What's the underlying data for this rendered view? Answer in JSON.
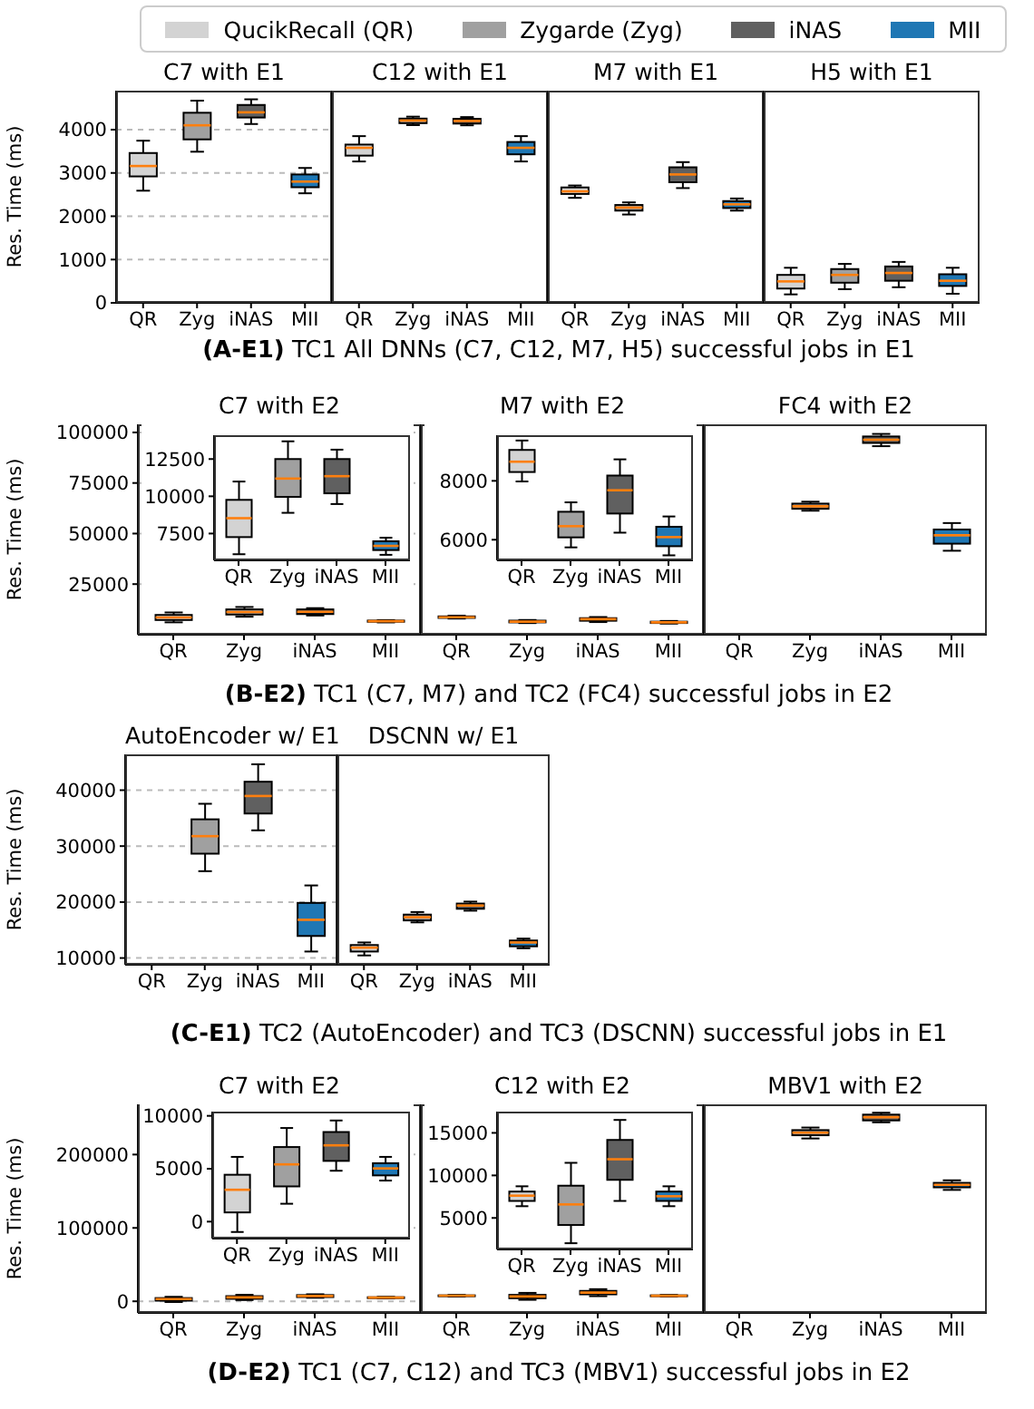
{
  "chart_data": [
    {
      "type": "box",
      "title": "C7 with E1",
      "ylabel": "Res. Time (ms)",
      "categories": [
        "QR",
        "Zyg",
        "iNAS",
        "MII"
      ],
      "ylim": [
        0,
        4900
      ],
      "yticks": [
        0,
        1000,
        2000,
        3000,
        4000
      ],
      "grid": "y",
      "legend": "top",
      "series": [
        {
          "name": "QucikRecall (QR)",
          "color": "#d3d3d3",
          "boxes": [
            {
              "low": 2590,
              "q1": 2920,
              "median": 3160,
              "q3": 3460,
              "high": 3745
            },
            null,
            null,
            null
          ]
        },
        {
          "name": "Zygarde (Zyg)",
          "color": "#a0a0a0",
          "boxes": [
            null,
            {
              "low": 3490,
              "q1": 3775,
              "median": 4100,
              "q3": 4390,
              "high": 4670
            },
            null,
            null
          ]
        },
        {
          "name": "iNAS",
          "color": "#606060",
          "boxes": [
            null,
            null,
            {
              "low": 4130,
              "q1": 4280,
              "median": 4400,
              "q3": 4570,
              "high": 4700
            },
            null
          ]
        },
        {
          "name": "MII",
          "color": "#1f77b4",
          "boxes": [
            null,
            null,
            null,
            {
              "low": 2530,
              "q1": 2670,
              "median": 2800,
              "q3": 2965,
              "high": 3115
            }
          ]
        }
      ]
    },
    {
      "type": "box",
      "title": "C12 with E1",
      "categories": [
        "QR",
        "Zyg",
        "iNAS",
        "MII"
      ],
      "ylim": [
        0,
        4900
      ],
      "yticks": [
        0,
        1000,
        2000,
        3000,
        4000
      ],
      "grid": "y",
      "tick_labels": "x",
      "series": [
        {
          "color": "#d3d3d3",
          "boxes": [
            {
              "low": 3265,
              "q1": 3400,
              "median": 3580,
              "q3": 3655,
              "high": 3850
            },
            null,
            null,
            null
          ]
        },
        {
          "color": "#a0a0a0",
          "boxes": [
            null,
            {
              "low": 4105,
              "q1": 4150,
              "median": 4210,
              "q3": 4255,
              "high": 4300
            },
            null,
            null
          ]
        },
        {
          "color": "#606060",
          "boxes": [
            null,
            null,
            {
              "low": 4100,
              "q1": 4140,
              "median": 4200,
              "q3": 4250,
              "high": 4290
            },
            null
          ]
        },
        {
          "color": "#1f77b4",
          "boxes": [
            null,
            null,
            null,
            {
              "low": 3265,
              "q1": 3430,
              "median": 3580,
              "q3": 3715,
              "high": 3850
            }
          ]
        }
      ]
    },
    {
      "type": "box",
      "title": "M7 with E1",
      "categories": [
        "QR",
        "Zyg",
        "iNAS",
        "MII"
      ],
      "ylim": [
        0,
        4900
      ],
      "yticks": [
        0,
        1000,
        2000,
        3000,
        4000
      ],
      "grid": "y",
      "tick_labels": "x",
      "series": [
        {
          "color": "#d3d3d3",
          "boxes": [
            {
              "low": 2425,
              "q1": 2515,
              "median": 2575,
              "q3": 2665,
              "high": 2710
            },
            null,
            null,
            null
          ]
        },
        {
          "color": "#a0a0a0",
          "boxes": [
            null,
            {
              "low": 2040,
              "q1": 2130,
              "median": 2200,
              "q3": 2260,
              "high": 2320
            },
            null,
            null
          ]
        },
        {
          "color": "#606060",
          "boxes": [
            null,
            null,
            {
              "low": 2650,
              "q1": 2785,
              "median": 2965,
              "q3": 3130,
              "high": 3250
            },
            null
          ]
        },
        {
          "color": "#1f77b4",
          "boxes": [
            null,
            null,
            null,
            {
              "low": 2130,
              "q1": 2190,
              "median": 2275,
              "q3": 2350,
              "high": 2410
            }
          ]
        }
      ]
    },
    {
      "type": "box",
      "title": "H5 with E1",
      "categories": [
        "QR",
        "Zyg",
        "iNAS",
        "MII"
      ],
      "ylim": [
        0,
        4900
      ],
      "yticks": [
        0,
        1000,
        2000,
        3000,
        4000
      ],
      "grid": "y",
      "tick_labels": "x",
      "annotations": [
        "(A-E1) TC1 All DNNs (C7, C12, M7, H5) successful jobs in E1"
      ],
      "series": [
        {
          "color": "#d3d3d3",
          "boxes": [
            {
              "low": 195,
              "q1": 330,
              "median": 495,
              "q3": 645,
              "high": 810
            },
            null,
            null,
            null
          ]
        },
        {
          "color": "#a0a0a0",
          "boxes": [
            null,
            {
              "low": 315,
              "q1": 465,
              "median": 645,
              "q3": 780,
              "high": 900
            },
            null,
            null
          ]
        },
        {
          "color": "#606060",
          "boxes": [
            null,
            null,
            {
              "low": 360,
              "q1": 510,
              "median": 690,
              "q3": 840,
              "high": 945
            },
            null
          ]
        },
        {
          "color": "#1f77b4",
          "boxes": [
            null,
            null,
            null,
            {
              "low": 210,
              "q1": 390,
              "median": 510,
              "q3": 660,
              "high": 810
            }
          ]
        }
      ]
    },
    {
      "type": "box",
      "title": "C7 with E2",
      "ylabel": "Res. Time (ms)",
      "categories": [
        "QR",
        "Zyg",
        "iNAS",
        "MII"
      ],
      "ylim": [
        0,
        104000
      ],
      "yticks": [
        25000,
        50000,
        75000,
        100000
      ],
      "grid": "y",
      "series": [
        {
          "color": "#d3d3d3",
          "boxes": [
            {
              "low": 6110,
              "q1": 7260,
              "median": 8530,
              "q3": 9760,
              "high": 10990
            },
            null,
            null,
            null
          ]
        },
        {
          "color": "#a0a0a0",
          "boxes": [
            null,
            {
              "low": 8890,
              "q1": 9960,
              "median": 11190,
              "q3": 12500,
              "high": 13690
            },
            null,
            null
          ]
        },
        {
          "color": "#606060",
          "boxes": [
            null,
            null,
            {
              "low": 9480,
              "q1": 10200,
              "median": 11350,
              "q3": 12500,
              "high": 13130
            },
            null
          ]
        },
        {
          "color": "#1f77b4",
          "boxes": [
            null,
            null,
            null,
            {
              "low": 6070,
              "q1": 6390,
              "median": 6670,
              "q3": 6980,
              "high": 7220
            }
          ]
        }
      ]
    },
    {
      "type": "box",
      "categories": [
        "QR",
        "Zyg",
        "iNAS",
        "MII"
      ],
      "ylim": [
        5700,
        14100
      ],
      "yticks": [
        7500,
        10000,
        12500
      ],
      "series": [
        {
          "color": "#d3d3d3",
          "boxes": [
            {
              "low": 6110,
              "q1": 7260,
              "median": 8530,
              "q3": 9760,
              "high": 10990
            },
            null,
            null,
            null
          ]
        },
        {
          "color": "#a0a0a0",
          "boxes": [
            null,
            {
              "low": 8890,
              "q1": 9960,
              "median": 11190,
              "q3": 12500,
              "high": 13690
            },
            null,
            null
          ]
        },
        {
          "color": "#606060",
          "boxes": [
            null,
            null,
            {
              "low": 9480,
              "q1": 10200,
              "median": 11350,
              "q3": 12500,
              "high": 13130
            },
            null
          ]
        },
        {
          "color": "#1f77b4",
          "boxes": [
            null,
            null,
            null,
            {
              "low": 6070,
              "q1": 6390,
              "median": 6670,
              "q3": 6980,
              "high": 7220
            }
          ]
        }
      ]
    },
    {
      "type": "box",
      "title": "M7 with E2",
      "categories": [
        "QR",
        "Zyg",
        "iNAS",
        "MII"
      ],
      "ylim": [
        0,
        104000
      ],
      "yticks": [
        25000,
        50000,
        75000,
        100000
      ],
      "grid": "y",
      "tick_labels": "x",
      "series": [
        {
          "color": "#d3d3d3",
          "boxes": [
            {
              "low": 7980,
              "q1": 8300,
              "median": 8650,
              "q3": 9050,
              "high": 9370
            },
            null,
            null,
            null
          ]
        },
        {
          "color": "#a0a0a0",
          "boxes": [
            null,
            {
              "low": 5740,
              "q1": 6080,
              "median": 6460,
              "q3": 6950,
              "high": 7270
            },
            null,
            null
          ]
        },
        {
          "color": "#606060",
          "boxes": [
            null,
            null,
            {
              "low": 6240,
              "q1": 6890,
              "median": 7680,
              "q3": 8180,
              "high": 8730
            },
            null
          ]
        },
        {
          "color": "#1f77b4",
          "boxes": [
            null,
            null,
            null,
            {
              "low": 5470,
              "q1": 5780,
              "median": 6090,
              "q3": 6440,
              "high": 6790
            }
          ]
        }
      ]
    },
    {
      "type": "box",
      "categories": [
        "QR",
        "Zyg",
        "iNAS",
        "MII"
      ],
      "ylim": [
        5300,
        9550
      ],
      "yticks": [
        6000,
        8000
      ],
      "series": [
        {
          "color": "#d3d3d3",
          "boxes": [
            {
              "low": 7980,
              "q1": 8300,
              "median": 8650,
              "q3": 9050,
              "high": 9370
            },
            null,
            null,
            null
          ]
        },
        {
          "color": "#a0a0a0",
          "boxes": [
            null,
            {
              "low": 5740,
              "q1": 6080,
              "median": 6460,
              "q3": 6950,
              "high": 7270
            },
            null,
            null
          ]
        },
        {
          "color": "#606060",
          "boxes": [
            null,
            null,
            {
              "low": 6240,
              "q1": 6890,
              "median": 7680,
              "q3": 8180,
              "high": 8730
            },
            null
          ]
        },
        {
          "color": "#1f77b4",
          "boxes": [
            null,
            null,
            null,
            {
              "low": 5470,
              "q1": 5780,
              "median": 6090,
              "q3": 6440,
              "high": 6790
            }
          ]
        }
      ]
    },
    {
      "type": "box",
      "title": "FC4 with E2",
      "categories": [
        "QR",
        "Zyg",
        "iNAS",
        "MII"
      ],
      "ylim": [
        0,
        104000
      ],
      "yticks": [
        25000,
        50000,
        75000,
        100000
      ],
      "grid": "y",
      "tick_labels": "x",
      "annotations": [
        "(B-E2) TC1 (C7, M7) and TC2 (FC4) successful jobs in E2"
      ],
      "series": [
        {
          "color": "#a0a0a0",
          "boxes": [
            null,
            {
              "low": 61300,
              "q1": 62250,
              "median": 63500,
              "q3": 64800,
              "high": 65750
            },
            null,
            null
          ]
        },
        {
          "color": "#606060",
          "boxes": [
            null,
            null,
            {
              "low": 93200,
              "q1": 94800,
              "median": 96400,
              "q3": 98000,
              "high": 99260
            },
            null
          ]
        },
        {
          "color": "#1f77b4",
          "boxes": [
            null,
            null,
            null,
            {
              "low": 41500,
              "q1": 45000,
              "median": 49150,
              "q3": 52000,
              "high": 55200
            }
          ]
        }
      ]
    },
    {
      "type": "box",
      "title": "AutoEncoder w/ E1",
      "ylabel": "Res. Time (ms)",
      "categories": [
        "QR",
        "Zyg",
        "iNAS",
        "MII"
      ],
      "ylim": [
        8800,
        46400
      ],
      "yticks": [
        10000,
        20000,
        30000,
        40000
      ],
      "grid": "y",
      "series": [
        {
          "color": "#a0a0a0",
          "boxes": [
            null,
            {
              "low": 25520,
              "q1": 28650,
              "median": 31780,
              "q3": 34790,
              "high": 37570
            },
            null,
            null
          ]
        },
        {
          "color": "#606060",
          "boxes": [
            null,
            null,
            {
              "low": 32820,
              "q1": 35830,
              "median": 38960,
              "q3": 41510,
              "high": 44630
            },
            null
          ]
        },
        {
          "color": "#1f77b4",
          "boxes": [
            null,
            null,
            null,
            {
              "low": 11160,
              "q1": 13940,
              "median": 16830,
              "q3": 19850,
              "high": 22970
            }
          ]
        }
      ]
    },
    {
      "type": "box",
      "title": "DSCNN w/ E1",
      "categories": [
        "QR",
        "Zyg",
        "iNAS",
        "MII"
      ],
      "ylim": [
        8800,
        46400
      ],
      "yticks": [
        10000,
        20000,
        30000,
        40000
      ],
      "grid": "y",
      "tick_labels": "x",
      "annotations": [
        "(C-E1) TC2 (AutoEncoder) and TC3 (DSCNN) successful jobs in E1"
      ],
      "series": [
        {
          "color": "#d3d3d3",
          "boxes": [
            {
              "low": 10460,
              "q1": 11160,
              "median": 11850,
              "q3": 12320,
              "high": 12780
            },
            null,
            null,
            null
          ]
        },
        {
          "color": "#a0a0a0",
          "boxes": [
            null,
            {
              "low": 16370,
              "q1": 16720,
              "median": 17300,
              "q3": 17760,
              "high": 18220
            },
            null,
            null
          ]
        },
        {
          "color": "#606060",
          "boxes": [
            null,
            null,
            {
              "low": 18460,
              "q1": 18800,
              "median": 19380,
              "q3": 19730,
              "high": 20080
            },
            null
          ]
        },
        {
          "color": "#1f77b4",
          "boxes": [
            null,
            null,
            null,
            {
              "low": 11740,
              "q1": 12090,
              "median": 12780,
              "q3": 13130,
              "high": 13470
            }
          ]
        }
      ]
    },
    {
      "type": "box",
      "title": "C7 with E2",
      "ylabel": "Res. Time (ms)",
      "categories": [
        "QR",
        "Zyg",
        "iNAS",
        "MII"
      ],
      "ylim": [
        -15800,
        268400
      ],
      "yticks": [
        0,
        100000,
        200000
      ],
      "grid": "y",
      "series": [
        {
          "color": "#d3d3d3",
          "boxes": [
            {
              "low": -980,
              "q1": 870,
              "median": 3010,
              "q3": 4430,
              "high": 6120
            },
            null,
            null,
            null
          ]
        },
        {
          "color": "#a0a0a0",
          "boxes": [
            null,
            {
              "low": 1690,
              "q1": 3330,
              "median": 5410,
              "q3": 7050,
              "high": 8850
            },
            null,
            null
          ]
        },
        {
          "color": "#606060",
          "boxes": [
            null,
            null,
            {
              "low": 4810,
              "q1": 5740,
              "median": 7210,
              "q3": 8470,
              "high": 9560
            },
            null
          ]
        },
        {
          "color": "#1f77b4",
          "boxes": [
            null,
            null,
            null,
            {
              "low": 3880,
              "q1": 4370,
              "median": 5030,
              "q3": 5520,
              "high": 6120
            }
          ]
        }
      ]
    },
    {
      "type": "box",
      "categories": [
        "QR",
        "Zyg",
        "iNAS",
        "MII"
      ],
      "ylim": [
        -1600,
        10400
      ],
      "yticks": [
        0,
        5000,
        10000
      ],
      "series": [
        {
          "color": "#d3d3d3",
          "boxes": [
            {
              "low": -980,
              "q1": 870,
              "median": 3010,
              "q3": 4430,
              "high": 6120
            },
            null,
            null,
            null
          ]
        },
        {
          "color": "#a0a0a0",
          "boxes": [
            null,
            {
              "low": 1690,
              "q1": 3330,
              "median": 5410,
              "q3": 7050,
              "high": 8850
            },
            null,
            null
          ]
        },
        {
          "color": "#606060",
          "boxes": [
            null,
            null,
            {
              "low": 4810,
              "q1": 5740,
              "median": 7210,
              "q3": 8470,
              "high": 9560
            },
            null
          ]
        },
        {
          "color": "#1f77b4",
          "boxes": [
            null,
            null,
            null,
            {
              "low": 3880,
              "q1": 4370,
              "median": 5030,
              "q3": 5520,
              "high": 6120
            }
          ]
        }
      ]
    },
    {
      "type": "box",
      "title": "C12 with E2",
      "categories": [
        "QR",
        "Zyg",
        "iNAS",
        "MII"
      ],
      "ylim": [
        -15800,
        268400
      ],
      "yticks": [
        0,
        100000,
        200000
      ],
      "grid": "y",
      "tick_labels": "x",
      "series": [
        {
          "color": "#d3d3d3",
          "boxes": [
            {
              "low": 6380,
              "q1": 7000,
              "median": 7620,
              "q3": 8100,
              "high": 8720
            },
            null,
            null,
            null
          ]
        },
        {
          "color": "#a0a0a0",
          "boxes": [
            null,
            {
              "low": 2030,
              "q1": 4170,
              "median": 6590,
              "q3": 8790,
              "high": 11480
            },
            null,
            null
          ]
        },
        {
          "color": "#606060",
          "boxes": [
            null,
            null,
            {
              "low": 7000,
              "q1": 9480,
              "median": 11900,
              "q3": 14170,
              "high": 16520
            },
            null
          ]
        },
        {
          "color": "#1f77b4",
          "boxes": [
            null,
            null,
            null,
            {
              "low": 6380,
              "q1": 7000,
              "median": 7550,
              "q3": 8100,
              "high": 8720
            }
          ]
        }
      ]
    },
    {
      "type": "box",
      "categories": [
        "QR",
        "Zyg",
        "iNAS",
        "MII"
      ],
      "ylim": [
        1300,
        17500
      ],
      "yticks": [
        5000,
        10000,
        15000
      ],
      "series": [
        {
          "color": "#d3d3d3",
          "boxes": [
            {
              "low": 6380,
              "q1": 7000,
              "median": 7620,
              "q3": 8100,
              "high": 8720
            },
            null,
            null,
            null
          ]
        },
        {
          "color": "#a0a0a0",
          "boxes": [
            null,
            {
              "low": 2030,
              "q1": 4170,
              "median": 6590,
              "q3": 8790,
              "high": 11480
            },
            null,
            null
          ]
        },
        {
          "color": "#606060",
          "boxes": [
            null,
            null,
            {
              "low": 7000,
              "q1": 9480,
              "median": 11900,
              "q3": 14170,
              "high": 16520
            },
            null
          ]
        },
        {
          "color": "#1f77b4",
          "boxes": [
            null,
            null,
            null,
            {
              "low": 6380,
              "q1": 7000,
              "median": 7550,
              "q3": 8100,
              "high": 8720
            }
          ]
        }
      ]
    },
    {
      "type": "box",
      "title": "MBV1 with E2",
      "categories": [
        "QR",
        "Zyg",
        "iNAS",
        "MII"
      ],
      "ylim": [
        -15800,
        268400
      ],
      "yticks": [
        0,
        100000,
        200000
      ],
      "grid": "y",
      "tick_labels": "x",
      "annotations": [
        "(D-E2) TC1 (C7, C12) and TC3 (MBV1) successful jobs in E2"
      ],
      "series": [
        {
          "color": "#a0a0a0",
          "boxes": [
            null,
            {
              "low": 221900,
              "q1": 226300,
              "median": 229800,
              "q3": 233300,
              "high": 236800
            },
            null,
            null
          ]
        },
        {
          "color": "#606060",
          "boxes": [
            null,
            null,
            {
              "low": 243900,
              "q1": 246500,
              "median": 250900,
              "q3": 254400,
              "high": 257000
            },
            null
          ]
        },
        {
          "color": "#1f77b4",
          "boxes": [
            null,
            null,
            null,
            {
              "low": 151800,
              "q1": 155300,
              "median": 158800,
              "q3": 161400,
              "high": 164900
            }
          ]
        }
      ]
    }
  ]
}
